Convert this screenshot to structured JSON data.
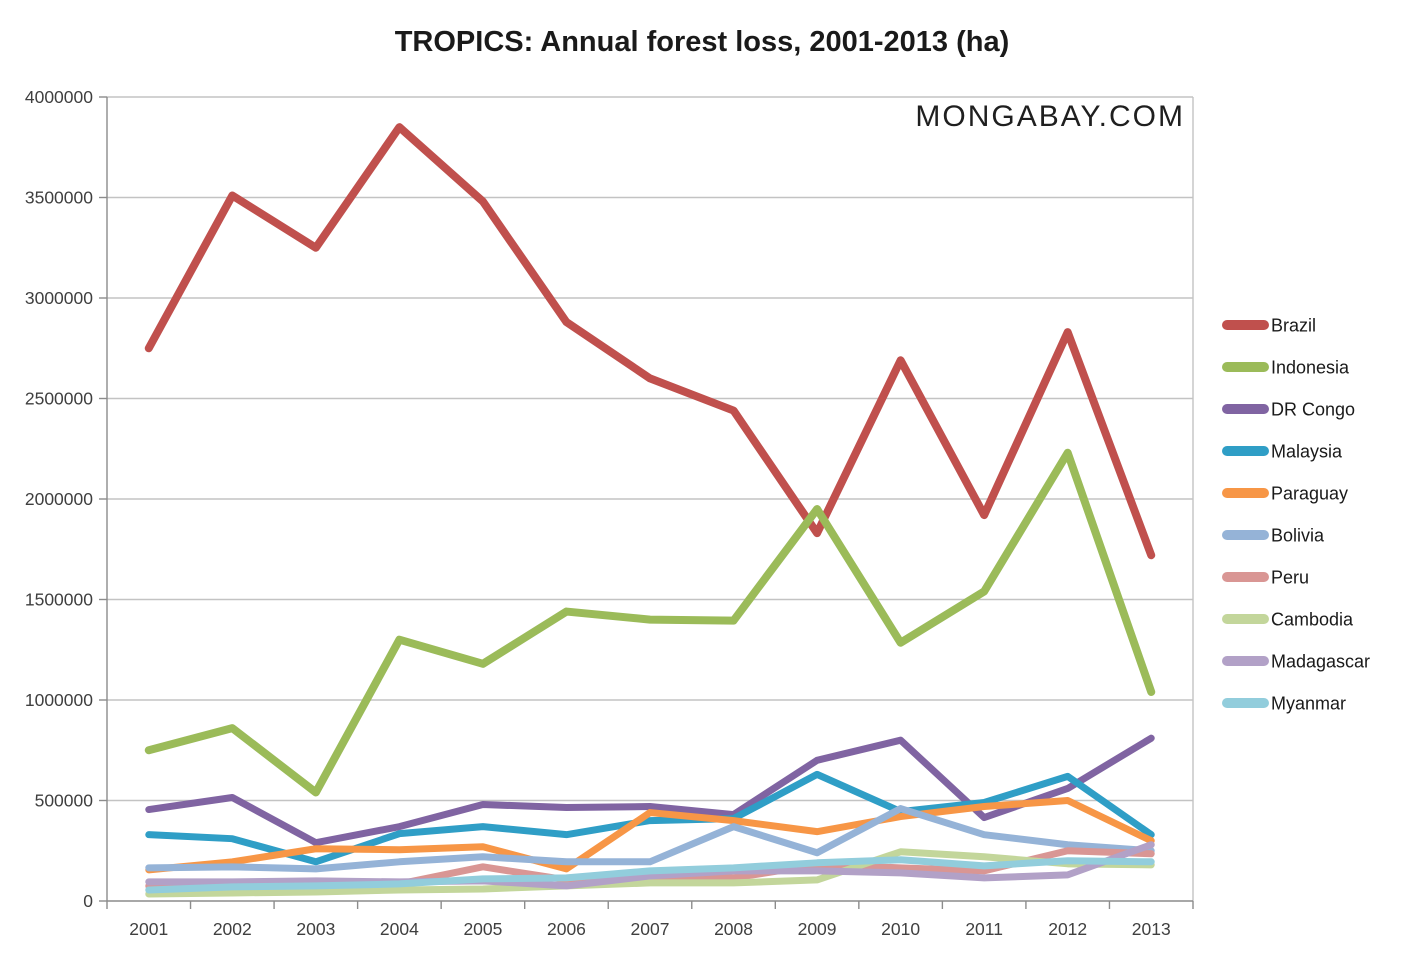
{
  "header": {
    "title": "TROPICS: Annual forest loss, 2001-2013 (ha)",
    "watermark": "MONGABAY.COM"
  },
  "chart_data": {
    "type": "line",
    "title": "TROPICS: Annual forest loss, 2001-2013 (ha)",
    "xlabel": "",
    "ylabel": "",
    "categories": [
      "2001",
      "2002",
      "2003",
      "2004",
      "2005",
      "2006",
      "2007",
      "2008",
      "2009",
      "2010",
      "2011",
      "2012",
      "2013"
    ],
    "ylim": [
      0,
      4000000
    ],
    "ytick_interval": 500000,
    "ytick_labels": [
      "0",
      "500000",
      "1000000",
      "1500000",
      "2000000",
      "2500000",
      "3000000",
      "3500000",
      "4000000"
    ],
    "grid": true,
    "legend_position": "right",
    "series": [
      {
        "name": "Brazil",
        "color": "#C0504D",
        "width": 8,
        "values": [
          2750000,
          3510000,
          3250000,
          3850000,
          3480000,
          2880000,
          2600000,
          2440000,
          1830000,
          2690000,
          1920000,
          2830000,
          1720000
        ]
      },
      {
        "name": "Indonesia",
        "color": "#9BBB59",
        "width": 8,
        "values": [
          750000,
          860000,
          540000,
          1300000,
          1180000,
          1440000,
          1400000,
          1395000,
          1950000,
          1285000,
          1540000,
          2230000,
          1040000
        ]
      },
      {
        "name": "DR Congo",
        "color": "#8064A2",
        "width": 7,
        "values": [
          455000,
          515000,
          290000,
          370000,
          480000,
          465000,
          470000,
          430000,
          700000,
          800000,
          415000,
          560000,
          810000
        ]
      },
      {
        "name": "Malaysia",
        "color": "#2F9EC6",
        "width": 7,
        "values": [
          330000,
          310000,
          195000,
          335000,
          370000,
          330000,
          400000,
          410000,
          630000,
          445000,
          490000,
          620000,
          330000
        ]
      },
      {
        "name": "Paraguay",
        "color": "#F79646",
        "width": 7,
        "values": [
          155000,
          195000,
          260000,
          255000,
          270000,
          160000,
          440000,
          400000,
          345000,
          420000,
          470000,
          500000,
          300000
        ]
      },
      {
        "name": "Bolivia",
        "color": "#95B3D7",
        "width": 7,
        "values": [
          165000,
          170000,
          160000,
          195000,
          220000,
          195000,
          195000,
          370000,
          240000,
          460000,
          330000,
          280000,
          250000
        ]
      },
      {
        "name": "Peru",
        "color": "#D99694",
        "width": 7,
        "values": [
          75000,
          85000,
          70000,
          85000,
          170000,
          105000,
          110000,
          115000,
          180000,
          165000,
          150000,
          250000,
          235000
        ]
      },
      {
        "name": "Cambodia",
        "color": "#C3D69B",
        "width": 7,
        "values": [
          35000,
          40000,
          45000,
          55000,
          60000,
          75000,
          90000,
          90000,
          105000,
          245000,
          220000,
          185000,
          180000
        ]
      },
      {
        "name": "Madagascar",
        "color": "#B2A1C7",
        "width": 7,
        "values": [
          95000,
          95000,
          100000,
          95000,
          100000,
          75000,
          125000,
          150000,
          150000,
          140000,
          115000,
          130000,
          280000
        ]
      },
      {
        "name": "Myanmar",
        "color": "#92CDDC",
        "width": 7,
        "values": [
          55000,
          70000,
          75000,
          85000,
          110000,
          115000,
          150000,
          165000,
          190000,
          205000,
          175000,
          200000,
          195000
        ]
      }
    ]
  },
  "colors": {
    "gridline": "#C3C3C3",
    "axis": "#8C8C8C",
    "tick_text": "#3F3F3F"
  }
}
